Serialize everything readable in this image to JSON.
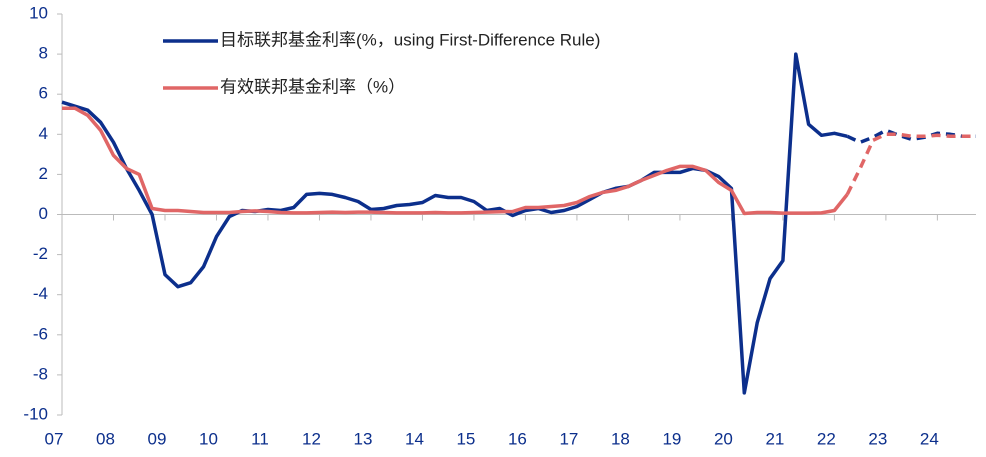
{
  "chart_data": {
    "type": "line",
    "categories": [
      "07",
      null,
      null,
      null,
      "08",
      null,
      null,
      null,
      "09",
      null,
      null,
      null,
      "10",
      null,
      null,
      null,
      "11",
      null,
      null,
      null,
      "12",
      null,
      null,
      null,
      "13",
      null,
      null,
      null,
      "14",
      null,
      null,
      null,
      "15",
      null,
      null,
      null,
      "16",
      null,
      null,
      null,
      "17",
      null,
      null,
      null,
      "18",
      null,
      null,
      null,
      "19",
      null,
      null,
      null,
      "20",
      null,
      null,
      null,
      "21",
      null,
      null,
      null,
      "22",
      null,
      null,
      null,
      "23",
      null,
      null,
      null,
      "24",
      null,
      null,
      null
    ],
    "series": [
      {
        "name": "目标联邦基金利率(%，using First-Difference Rule)",
        "color": "#0c2f8c",
        "dash_start": 61,
        "values": [
          5.6,
          5.4,
          5.2,
          4.6,
          3.6,
          2.3,
          1.2,
          0.0,
          -3.0,
          -3.6,
          -3.4,
          -2.6,
          -1.1,
          -0.1,
          0.2,
          0.15,
          0.25,
          0.2,
          0.35,
          1.0,
          1.05,
          1.0,
          0.85,
          0.65,
          0.25,
          0.3,
          0.45,
          0.5,
          0.6,
          0.95,
          0.85,
          0.85,
          0.65,
          0.2,
          0.3,
          -0.05,
          0.2,
          0.3,
          0.1,
          0.2,
          0.4,
          0.75,
          1.1,
          1.3,
          1.4,
          1.7,
          2.1,
          2.1,
          2.1,
          2.3,
          2.2,
          1.9,
          1.3,
          -8.9,
          -5.4,
          -3.2,
          -2.3,
          8.0,
          4.5,
          3.95,
          4.05,
          3.9,
          3.6,
          3.85,
          4.2,
          3.95,
          3.75,
          3.85,
          4.05,
          4.0,
          3.9,
          3.9
        ]
      },
      {
        "name": "有效联邦基金利率（%）",
        "color": "#e06666",
        "dash_start": 61,
        "values": [
          5.3,
          5.3,
          4.95,
          4.2,
          2.95,
          2.3,
          2.0,
          0.3,
          0.2,
          0.2,
          0.15,
          0.1,
          0.1,
          0.1,
          0.15,
          0.18,
          0.15,
          0.1,
          0.08,
          0.08,
          0.1,
          0.12,
          0.1,
          0.12,
          0.12,
          0.1,
          0.08,
          0.08,
          0.08,
          0.1,
          0.08,
          0.08,
          0.1,
          0.12,
          0.14,
          0.15,
          0.35,
          0.35,
          0.4,
          0.45,
          0.6,
          0.9,
          1.1,
          1.2,
          1.4,
          1.7,
          1.95,
          2.2,
          2.4,
          2.4,
          2.2,
          1.6,
          1.2,
          0.05,
          0.1,
          0.1,
          0.07,
          0.07,
          0.07,
          0.08,
          0.2,
          1.0,
          2.3,
          3.7,
          4.0,
          4.0,
          3.9,
          3.9,
          3.95,
          3.9,
          3.9,
          3.9
        ]
      }
    ],
    "ylim": [
      -10,
      10
    ],
    "yticks": [
      -10,
      -8,
      -6,
      -4,
      -2,
      0,
      2,
      4,
      6,
      8,
      10
    ]
  }
}
